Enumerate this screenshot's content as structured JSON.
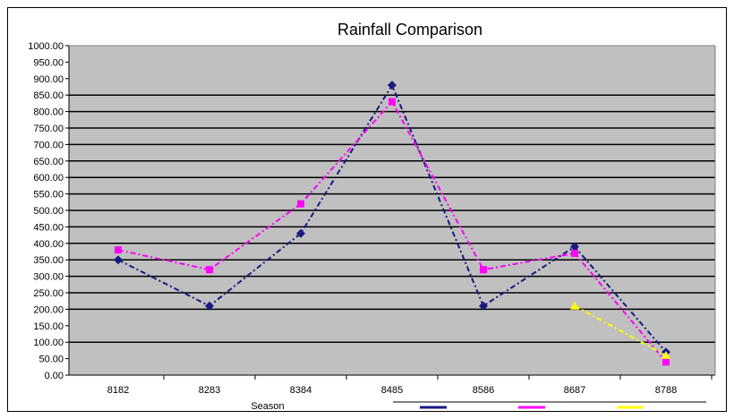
{
  "chart_data": {
    "type": "line",
    "title": "Rainfall Comparison",
    "xlabel": "Season",
    "ylabel": "",
    "categories": [
      "8182",
      "8283",
      "8384",
      "8485",
      "8586",
      "8687",
      "8788"
    ],
    "y_ticks": [
      "0.00",
      "50.00",
      "100.00",
      "150.00",
      "200.00",
      "250.00",
      "300.00",
      "350.00",
      "400.00",
      "450.00",
      "500.00",
      "550.00",
      "600.00",
      "650.00",
      "700.00",
      "750.00",
      "800.00",
      "850.00",
      "900.00",
      "950.00",
      "1000.00"
    ],
    "ylim": [
      0,
      1000
    ],
    "series": [
      {
        "name": "",
        "color": "#1a1a80",
        "marker": "diamond",
        "values": [
          350,
          210,
          430,
          880,
          210,
          390,
          70
        ]
      },
      {
        "name": "",
        "color": "#ff00ff",
        "marker": "square",
        "values": [
          380,
          320,
          520,
          830,
          320,
          370,
          40
        ]
      },
      {
        "name": "",
        "color": "#ffff00",
        "marker": "triangle",
        "values": [
          null,
          null,
          null,
          null,
          null,
          210,
          60
        ]
      }
    ],
    "grid": "major-horizontal-partial",
    "legend_position": "bottom-right",
    "plot_background": "#c0c0c0"
  }
}
